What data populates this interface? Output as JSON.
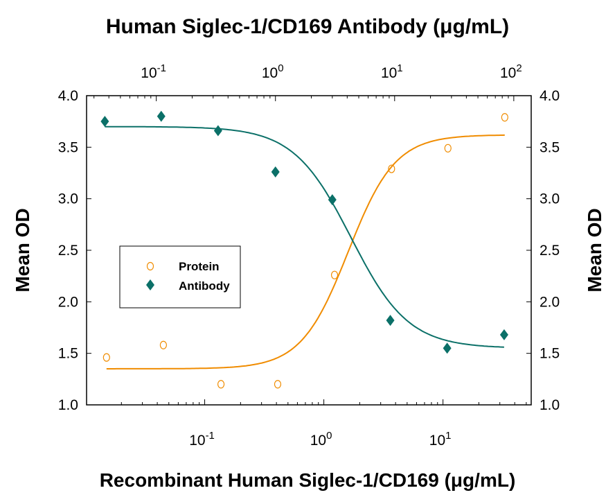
{
  "chart_data": {
    "type": "scatter",
    "title": "",
    "top_xlabel": "Human Siglec-1/CD169 Antibody (μg/mL)",
    "xlabel": "Recombinant Human Siglec-1/CD169 (μg/mL)",
    "ylabel": "Mean OD",
    "ylabel_right": "Mean OD",
    "x_scale": "log",
    "bottom_xlim": [
      0.0102,
      55
    ],
    "top_xlim": [
      0.026,
      140
    ],
    "ylim": [
      1.0,
      4.0
    ],
    "y_ticks": [
      "1.0",
      "1.5",
      "2.0",
      "2.5",
      "3.0",
      "3.5",
      "4.0"
    ],
    "bottom_x_ticks": [
      {
        "base": "10",
        "exp": "-1"
      },
      {
        "base": "10",
        "exp": "0"
      },
      {
        "base": "10",
        "exp": "1"
      }
    ],
    "top_x_ticks": [
      {
        "base": "10",
        "exp": "-1"
      },
      {
        "base": "10",
        "exp": "0"
      },
      {
        "base": "10",
        "exp": "1"
      },
      {
        "base": "10",
        "exp": "2"
      }
    ],
    "grid": false,
    "legend_position": "center-left",
    "series": [
      {
        "name": "Protein",
        "axis": "bottom",
        "marker": "open-circle",
        "color": "#F08C00",
        "x": [
          0.015,
          0.045,
          0.137,
          0.41,
          1.23,
          3.7,
          11,
          33
        ],
        "y": [
          1.46,
          1.58,
          1.2,
          1.2,
          2.26,
          3.29,
          3.49,
          3.79
        ],
        "fit": {
          "bottom": 1.35,
          "top": 3.62,
          "ec50": 1.6,
          "hill": 2.2
        }
      },
      {
        "name": "Antibody",
        "axis": "top",
        "marker": "filled-diamond",
        "color": "#0B7068",
        "x": [
          0.037,
          0.11,
          0.33,
          1.0,
          3.0,
          9.2,
          27.6,
          83
        ],
        "y": [
          3.75,
          3.8,
          3.66,
          3.26,
          2.99,
          1.82,
          1.55,
          1.68
        ],
        "fit": {
          "bottom": 1.55,
          "top": 3.7,
          "ec50": 4.3,
          "hill": -1.8
        }
      }
    ]
  }
}
